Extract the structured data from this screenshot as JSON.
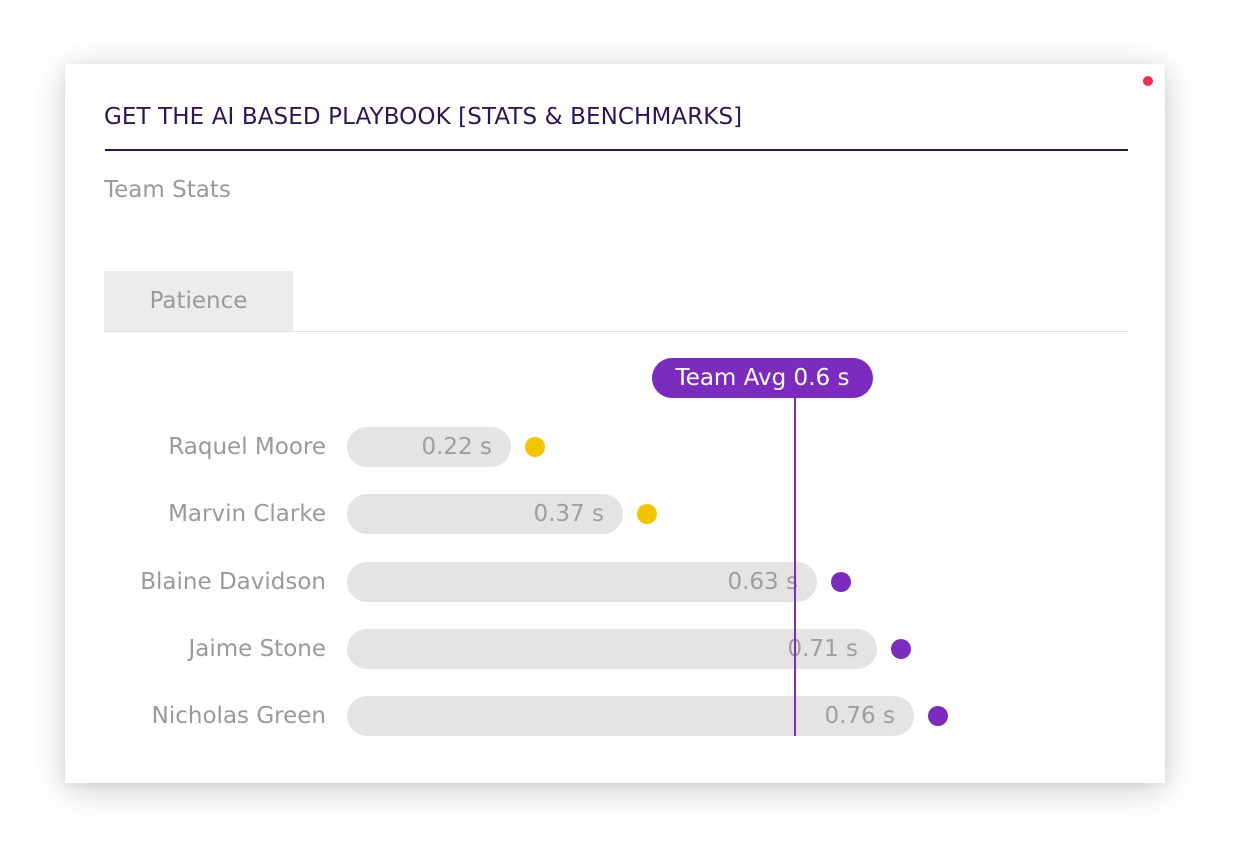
{
  "dialog": {
    "title": "GET THE AI BASED PLAYBOOK [STATS & BENCHMARKS]",
    "subtitle": "Team Stats",
    "tab_label": "Patience",
    "corner_dot_color": "#ef2f4f"
  },
  "chart_data": {
    "type": "bar",
    "orientation": "horizontal",
    "unit": "s",
    "team_average": {
      "label": "Team Avg 0.6 s",
      "value": 0.6
    },
    "xlim": [
      0,
      0.9
    ],
    "colors": {
      "below_average": "#f2c500",
      "above_average": "#7b2cbf",
      "bar": "#e4e4e4",
      "average_line": "#7b2cbf"
    },
    "rows": [
      {
        "name": "Raquel Moore",
        "value": 0.22,
        "label": "0.22 s",
        "indicator": "below_average"
      },
      {
        "name": "Marvin Clarke",
        "value": 0.37,
        "label": "0.37 s",
        "indicator": "below_average"
      },
      {
        "name": "Blaine Davidson",
        "value": 0.63,
        "label": "0.63 s",
        "indicator": "above_average"
      },
      {
        "name": "Jaime Stone",
        "value": 0.71,
        "label": "0.71 s",
        "indicator": "above_average"
      },
      {
        "name": "Nicholas Green",
        "value": 0.76,
        "label": "0.76 s",
        "indicator": "above_average"
      }
    ]
  }
}
